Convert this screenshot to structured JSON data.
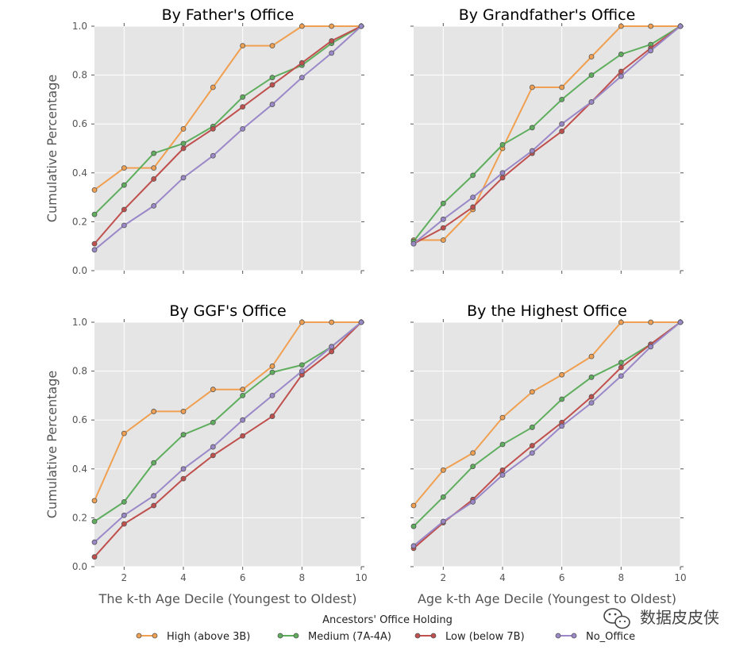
{
  "colors": {
    "high": "#f0a050",
    "medium": "#5eae5e",
    "low": "#c0504d",
    "no_office": "#9a88c8",
    "panel_bg": "#e5e5e5",
    "grid": "#ffffff"
  },
  "legend": {
    "title": "Ancestors' Office Holding",
    "entries": [
      "High (above 3B)",
      "Medium (7A-4A)",
      "Low (below 7B)",
      "No_Office"
    ]
  },
  "watermark": {
    "text": "数据皮皮侠",
    "icon": "wechat-icon"
  },
  "chart_data": [
    {
      "type": "line",
      "title": "By Father's Office",
      "xlabel": "",
      "ylabel": "Cumulative Percentage",
      "xlim": [
        1,
        10
      ],
      "ylim": [
        0,
        1
      ],
      "xticks": [
        "2",
        "4",
        "6",
        "8",
        "10"
      ],
      "yticks": [
        "0.0",
        "0.2",
        "0.4",
        "0.6",
        "0.8",
        "1.0"
      ],
      "x": [
        1,
        2,
        3,
        4,
        5,
        6,
        7,
        8,
        9,
        10
      ],
      "series": [
        {
          "name": "High (above 3B)",
          "values": [
            0.33,
            0.42,
            0.42,
            0.58,
            0.75,
            0.92,
            0.92,
            1.0,
            1.0,
            1.0
          ]
        },
        {
          "name": "Medium (7A-4A)",
          "values": [
            0.23,
            0.35,
            0.48,
            0.52,
            0.59,
            0.71,
            0.79,
            0.84,
            0.93,
            1.0
          ]
        },
        {
          "name": "Low (below 7B)",
          "values": [
            0.11,
            0.25,
            0.375,
            0.5,
            0.58,
            0.67,
            0.76,
            0.85,
            0.94,
            1.0
          ]
        },
        {
          "name": "No_Office",
          "values": [
            0.085,
            0.185,
            0.265,
            0.38,
            0.47,
            0.58,
            0.68,
            0.79,
            0.89,
            1.0
          ]
        }
      ]
    },
    {
      "type": "line",
      "title": "By Grandfather's Office",
      "xlabel": "",
      "ylabel": "",
      "xlim": [
        1,
        10
      ],
      "ylim": [
        0,
        1
      ],
      "xticks": [
        "2",
        "4",
        "6",
        "8",
        "10"
      ],
      "yticks": [
        "0.0",
        "0.2",
        "0.4",
        "0.6",
        "0.8",
        "1.0"
      ],
      "x": [
        1,
        2,
        3,
        4,
        5,
        6,
        7,
        8,
        9,
        10
      ],
      "series": [
        {
          "name": "High (above 3B)",
          "values": [
            0.125,
            0.125,
            0.25,
            0.5,
            0.75,
            0.75,
            0.875,
            1.0,
            1.0,
            1.0
          ]
        },
        {
          "name": "Medium (7A-4A)",
          "values": [
            0.12,
            0.275,
            0.39,
            0.515,
            0.585,
            0.7,
            0.8,
            0.885,
            0.925,
            1.0
          ]
        },
        {
          "name": "Low (below 7B)",
          "values": [
            0.11,
            0.175,
            0.26,
            0.38,
            0.48,
            0.57,
            0.69,
            0.815,
            0.91,
            1.0
          ]
        },
        {
          "name": "No_Office",
          "values": [
            0.11,
            0.21,
            0.3,
            0.4,
            0.49,
            0.6,
            0.69,
            0.795,
            0.9,
            1.0
          ]
        }
      ]
    },
    {
      "type": "line",
      "title": "By GGF's Office",
      "xlabel": "The k-th Age Decile (Youngest to Oldest)",
      "ylabel": "Cumulative Percentage",
      "xlim": [
        1,
        10
      ],
      "ylim": [
        0,
        1
      ],
      "xticks": [
        "2",
        "4",
        "6",
        "8",
        "10"
      ],
      "yticks": [
        "0.0",
        "0.2",
        "0.4",
        "0.6",
        "0.8",
        "1.0"
      ],
      "x": [
        1,
        2,
        3,
        4,
        5,
        6,
        7,
        8,
        9,
        10
      ],
      "series": [
        {
          "name": "High (above 3B)",
          "values": [
            0.27,
            0.545,
            0.635,
            0.635,
            0.725,
            0.725,
            0.82,
            1.0,
            1.0,
            1.0
          ]
        },
        {
          "name": "Medium (7A-4A)",
          "values": [
            0.185,
            0.265,
            0.425,
            0.54,
            0.59,
            0.7,
            0.795,
            0.825,
            0.9,
            1.0
          ]
        },
        {
          "name": "Low (below 7B)",
          "values": [
            0.04,
            0.175,
            0.25,
            0.36,
            0.455,
            0.535,
            0.615,
            0.785,
            0.88,
            1.0
          ]
        },
        {
          "name": "No_Office",
          "values": [
            0.1,
            0.21,
            0.29,
            0.4,
            0.49,
            0.6,
            0.7,
            0.8,
            0.9,
            1.0
          ]
        }
      ]
    },
    {
      "type": "line",
      "title": "By the Highest Office",
      "xlabel": "Age k-th Age Decile (Youngest to Oldest)",
      "ylabel": "",
      "xlim": [
        1,
        10
      ],
      "ylim": [
        0,
        1
      ],
      "xticks": [
        "2",
        "4",
        "6",
        "8",
        "10"
      ],
      "yticks": [
        "0.0",
        "0.2",
        "0.4",
        "0.6",
        "0.8",
        "1.0"
      ],
      "x": [
        1,
        2,
        3,
        4,
        5,
        6,
        7,
        8,
        9,
        10
      ],
      "series": [
        {
          "name": "High (above 3B)",
          "values": [
            0.25,
            0.395,
            0.465,
            0.61,
            0.715,
            0.785,
            0.86,
            1.0,
            1.0,
            1.0
          ]
        },
        {
          "name": "Medium (7A-4A)",
          "values": [
            0.165,
            0.285,
            0.41,
            0.5,
            0.57,
            0.685,
            0.775,
            0.835,
            0.91,
            1.0
          ]
        },
        {
          "name": "Low (below 7B)",
          "values": [
            0.075,
            0.18,
            0.275,
            0.395,
            0.495,
            0.59,
            0.695,
            0.815,
            0.91,
            1.0
          ]
        },
        {
          "name": "No_Office",
          "values": [
            0.085,
            0.185,
            0.265,
            0.375,
            0.465,
            0.575,
            0.67,
            0.78,
            0.9,
            1.0
          ]
        }
      ]
    }
  ]
}
